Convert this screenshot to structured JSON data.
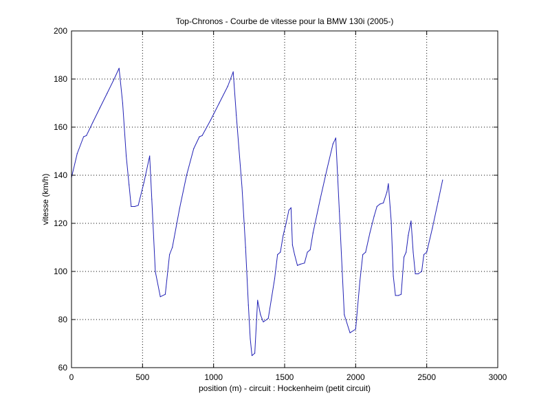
{
  "chart_data": {
    "type": "line",
    "title": "Top-Chronos - Courbe de vitesse pour la BMW 130i (2005-)",
    "xlabel": "position (m) - circuit : Hockenheim (petit circuit)",
    "ylabel": "vitesse (km/h)",
    "xlim": [
      0,
      3000
    ],
    "ylim": [
      60,
      200
    ],
    "xticks": [
      0,
      500,
      1000,
      1500,
      2000,
      2500,
      3000
    ],
    "yticks": [
      60,
      80,
      100,
      120,
      140,
      160,
      180,
      200
    ],
    "grid": true,
    "grid_style": "dotted",
    "line_color": "#1f1fb4",
    "series": [
      {
        "x": [
          0,
          40,
          85,
          105,
          150,
          200,
          250,
          300,
          335,
          360,
          385,
          405,
          420,
          445,
          470,
          510,
          550,
          565,
          590,
          625,
          660,
          690,
          710,
          760,
          810,
          860,
          900,
          920,
          980,
          1040,
          1100,
          1138,
          1160,
          1200,
          1225,
          1245,
          1258,
          1270,
          1290,
          1310,
          1330,
          1350,
          1385,
          1430,
          1450,
          1470,
          1490,
          1510,
          1530,
          1545,
          1555,
          1570,
          1590,
          1610,
          1640,
          1660,
          1680,
          1700,
          1750,
          1800,
          1840,
          1860,
          1885,
          1920,
          1960,
          2000,
          2030,
          2050,
          2070,
          2100,
          2130,
          2150,
          2170,
          2195,
          2220,
          2230,
          2250,
          2265,
          2280,
          2300,
          2320,
          2340,
          2355,
          2370,
          2390,
          2405,
          2420,
          2440,
          2465,
          2480,
          2500,
          2540,
          2580,
          2612
        ],
        "y": [
          139,
          149,
          156,
          156.5,
          162,
          168,
          174,
          180,
          184.5,
          170,
          148,
          136,
          127,
          127,
          127.5,
          137,
          148,
          130,
          100,
          89.5,
          90.5,
          107,
          110,
          126,
          140,
          151,
          156,
          156.5,
          163,
          170,
          177,
          183,
          165,
          135,
          110,
          86,
          72,
          65,
          66,
          88,
          82,
          79,
          80.5,
          97,
          107,
          108,
          115,
          120,
          125.5,
          126.5,
          111,
          107,
          102.5,
          103,
          103.5,
          108,
          109,
          116,
          130,
          143,
          153,
          155.5,
          125,
          82,
          74.5,
          76,
          96,
          107,
          108,
          116,
          123,
          127,
          128,
          128.5,
          133,
          136.5,
          121,
          98,
          90,
          90,
          90.5,
          106,
          108,
          115,
          121,
          108,
          99,
          99,
          100,
          107,
          108,
          118,
          129,
          138
        ]
      }
    ]
  }
}
